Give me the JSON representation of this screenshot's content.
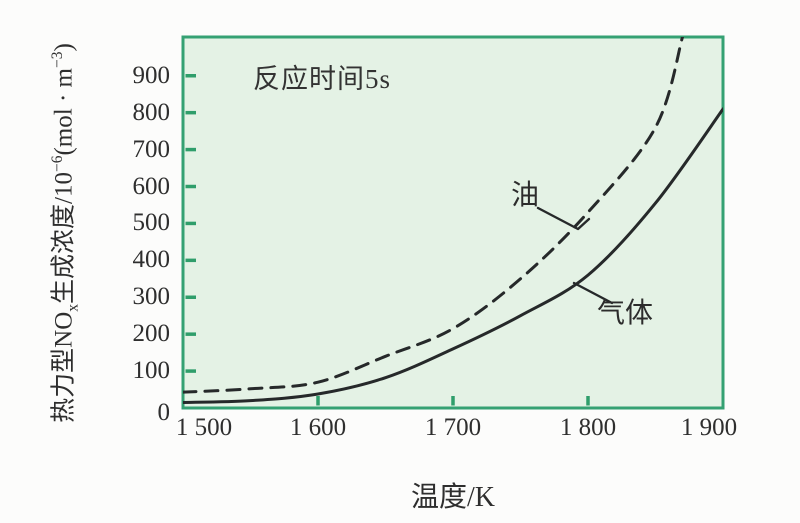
{
  "figure_title": "thermal-nox-vs-temperature-chart",
  "chart_data": {
    "type": "line",
    "title": "",
    "annotation": "反应时间5s",
    "xlabel": "温度/K",
    "ylabel": "热力型NOx生成浓度/10⁻⁶(mol·m⁻³)",
    "ylabel_parts": [
      {
        "t": "热力型NO"
      },
      {
        "t": "x",
        "s": "sub"
      },
      {
        "t": "生成浓度/10"
      },
      {
        "t": "−6",
        "s": "sup"
      },
      {
        "t": "(mol · m"
      },
      {
        "t": "−3",
        "s": "sup"
      },
      {
        "t": ")"
      }
    ],
    "xlim": [
      1500,
      1900
    ],
    "ylim": [
      0,
      1005
    ],
    "grid": false,
    "legend_position": "inline-labels",
    "x_ticks": [
      1500,
      1600,
      1700,
      1800,
      1900
    ],
    "x_tick_labels": [
      "1 500",
      "1 600",
      "1 700",
      "1 800",
      "1 900"
    ],
    "x_tick_marks": [
      1600,
      1700,
      1800
    ],
    "y_ticks": [
      0,
      100,
      200,
      300,
      400,
      500,
      600,
      700,
      800,
      900
    ],
    "y_tick_labels": [
      "0",
      "100",
      "200",
      "300",
      "400",
      "500",
      "600",
      "700",
      "800",
      "900"
    ],
    "series": [
      {
        "name": "油",
        "line_style": "dashed",
        "x": [
          1500,
          1550,
          1600,
          1650,
          1700,
          1750,
          1800,
          1850,
          1870
        ],
        "y": [
          43,
          52,
          70,
          140,
          215,
          350,
          530,
          760,
          1005
        ]
      },
      {
        "name": "气体",
        "line_style": "solid",
        "x": [
          1500,
          1550,
          1600,
          1650,
          1700,
          1750,
          1800,
          1850,
          1900
        ],
        "y": [
          15,
          20,
          38,
          82,
          160,
          250,
          360,
          555,
          810
        ]
      }
    ],
    "colors": {
      "plot_background": "#e4f2e5",
      "frame": "#35a173",
      "tick": "#2f9e6b",
      "curve": "#26292a",
      "text": "#2e2e2e",
      "page_background": "#fcfcfb"
    }
  }
}
